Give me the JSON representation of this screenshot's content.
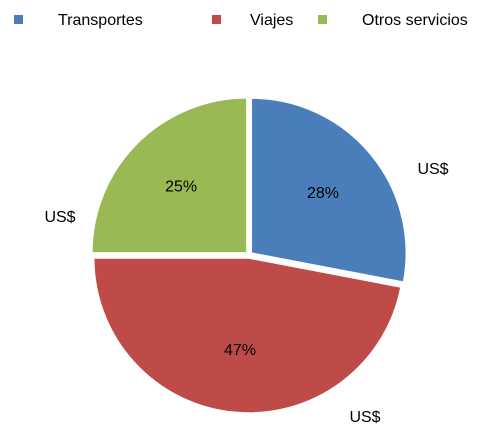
{
  "chart_data": {
    "type": "pie",
    "categories": [
      "Transportes",
      "Viajes",
      "Otros servicios"
    ],
    "values": [
      28,
      47,
      25
    ],
    "value_labels": [
      "28%",
      "47%",
      "25%"
    ],
    "outer_labels": [
      "US$",
      "US$",
      "US$"
    ],
    "colors": [
      "#4a7ebb",
      "#be4b48",
      "#98b954"
    ],
    "legend": "top"
  }
}
